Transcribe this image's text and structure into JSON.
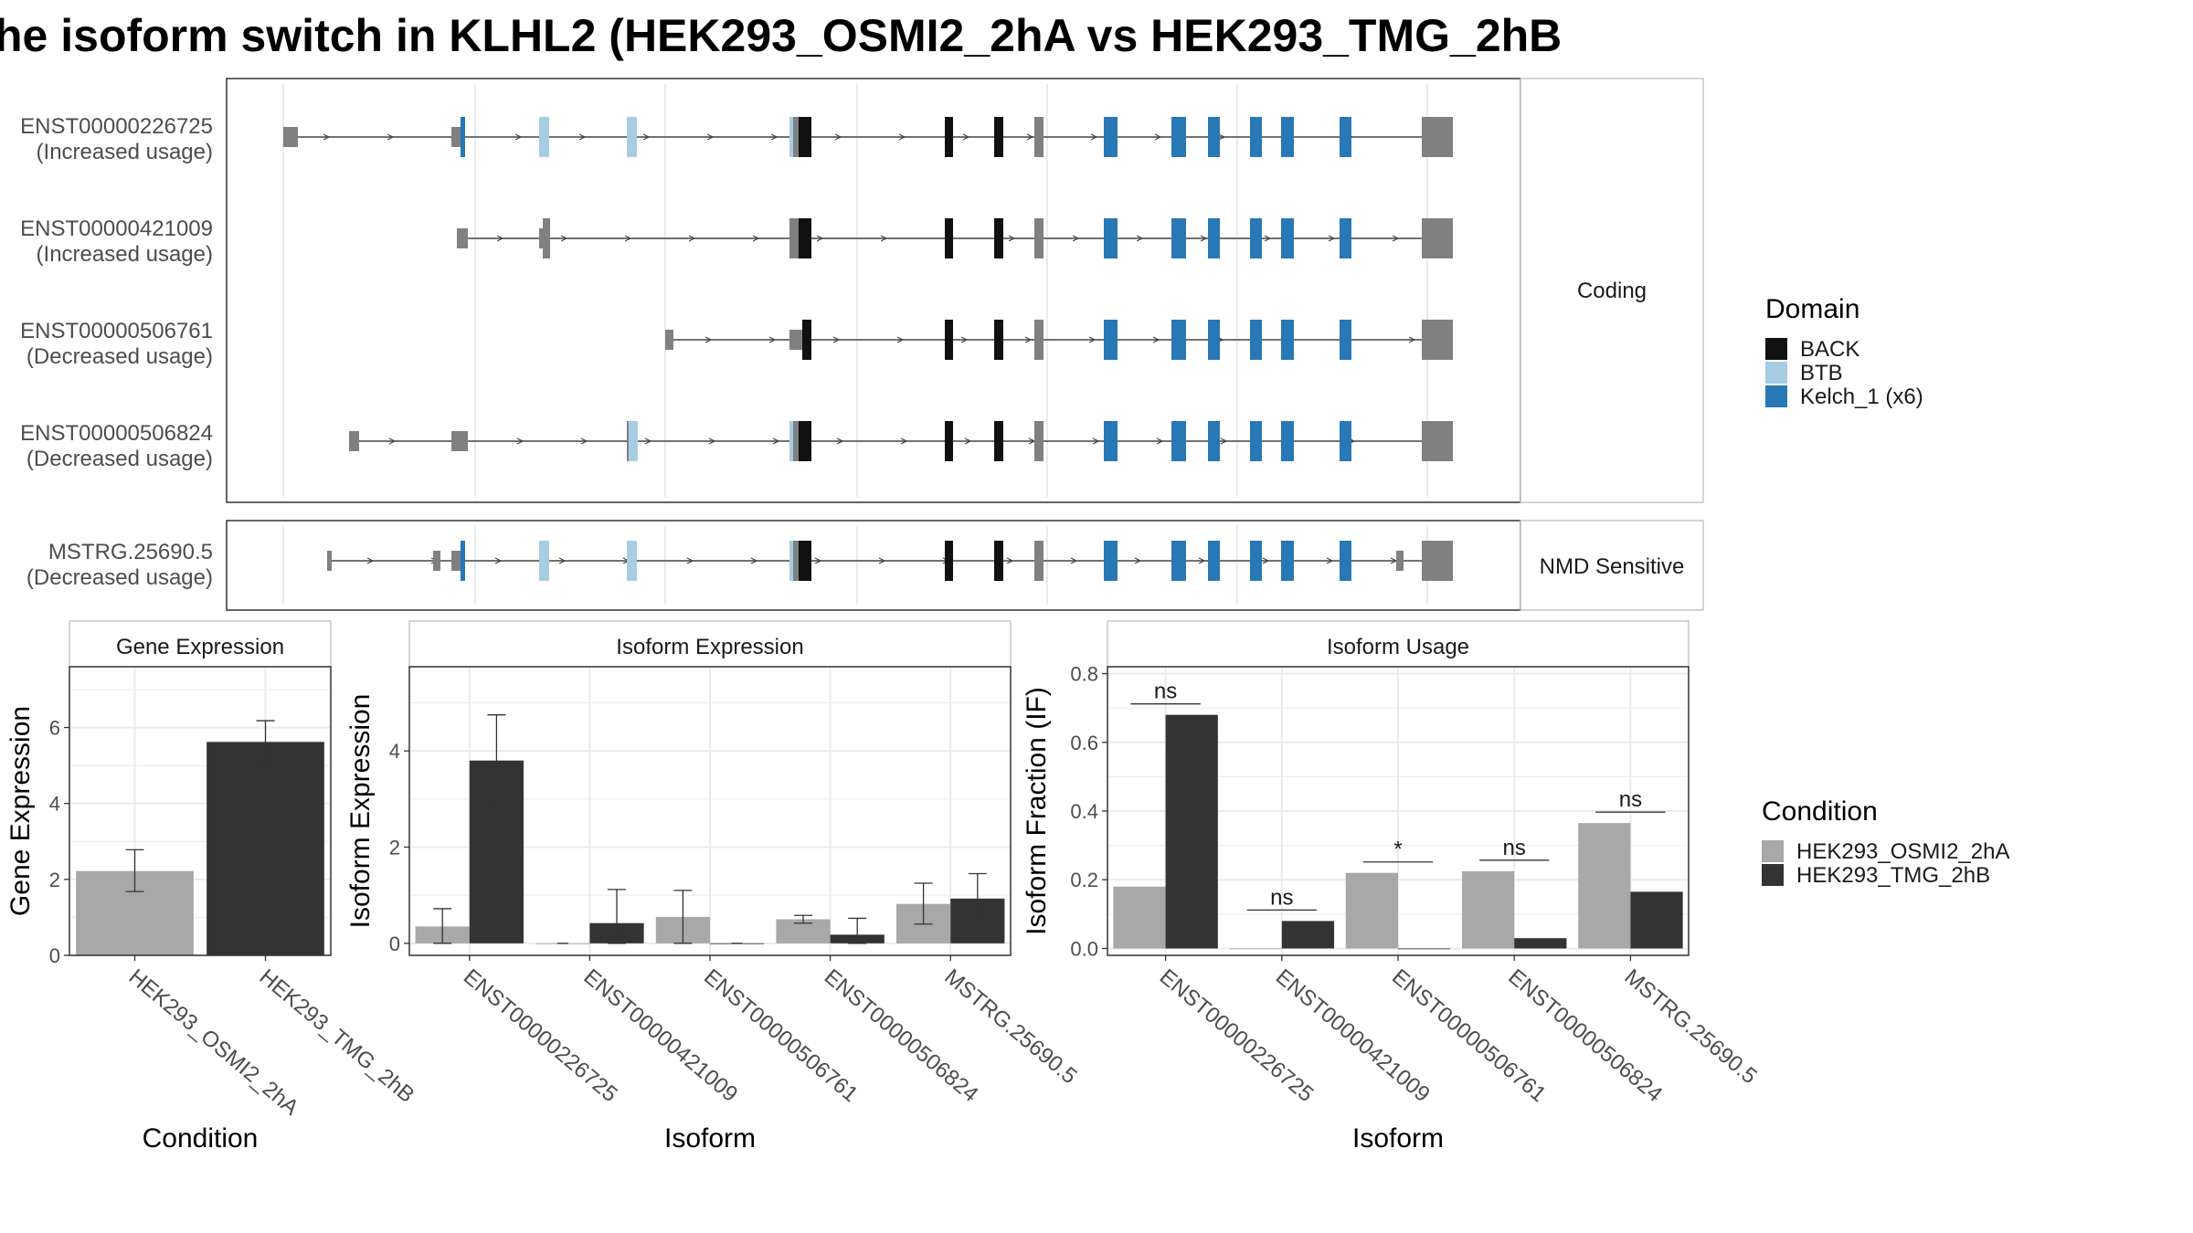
{
  "title": "he isoform switch in KLHL2 (HEK293_OSMI2_2hA vs HEK293_TMG_2hB",
  "colors": {
    "BACK": "#111111",
    "BTB": "#a6cde3",
    "Kelch_1": "#2878b5",
    "utr": "#808080",
    "line": "#444444",
    "grid": "#ebebeb",
    "cond1": "#a8a8a8",
    "cond2": "#333333"
  },
  "structure": {
    "facets": [
      "Coding",
      "NMD Sensitive"
    ],
    "transcripts": [
      {
        "id": "ENST00000226725",
        "usage": "(Increased usage)",
        "facet": "Coding"
      },
      {
        "id": "ENST00000421009",
        "usage": "(Increased usage)",
        "facet": "Coding"
      },
      {
        "id": "ENST00000506761",
        "usage": "(Decreased usage)",
        "facet": "Coding"
      },
      {
        "id": "ENST00000506824",
        "usage": "(Decreased usage)",
        "facet": "Coding"
      },
      {
        "id": "MSTRG.25690.5",
        "usage": "(Decreased usage)",
        "facet": "NMD Sensitive"
      }
    ],
    "legend_title": "Domain",
    "legend_items": [
      {
        "label": "BACK",
        "color": "#111111"
      },
      {
        "label": "BTB",
        "color": "#a6cde3"
      },
      {
        "label": "Kelch_1 (x6)",
        "color": "#2878b5"
      }
    ]
  },
  "chart_data": [
    {
      "type": "bar",
      "panel": "Gene Expression",
      "xlabel": "Condition",
      "ylabel": "Gene Expression",
      "categories": [
        "HEK293_OSMI2_2hA",
        "HEK293_TMG_2hB"
      ],
      "values": [
        2.22,
        5.62
      ],
      "error_low": [
        1.68,
        5.08
      ],
      "error_high": [
        2.78,
        6.18
      ],
      "ylim": [
        0,
        7.6
      ],
      "yticks": [
        0,
        2,
        4,
        6
      ]
    },
    {
      "type": "bar",
      "panel": "Isoform Expression",
      "xlabel": "Isoform",
      "ylabel": "Isoform Expression",
      "categories": [
        "ENST00000226725",
        "ENST00000421009",
        "ENST00000506761",
        "ENST00000506824",
        "MSTRG.25690.5"
      ],
      "series": [
        {
          "name": "HEK293_OSMI2_2hA",
          "values": [
            0.35,
            0.0,
            0.55,
            0.5,
            0.82
          ],
          "error_low": [
            0.0,
            0.0,
            0.0,
            0.42,
            0.4
          ],
          "error_high": [
            0.72,
            0.0,
            1.1,
            0.58,
            1.25
          ]
        },
        {
          "name": "HEK293_TMG_2hB",
          "values": [
            3.8,
            0.42,
            0.0,
            0.18,
            0.93
          ],
          "error_low": [
            2.85,
            0.0,
            0.0,
            0.0,
            0.45
          ],
          "error_high": [
            4.75,
            1.12,
            0.0,
            0.52,
            1.45
          ]
        }
      ],
      "ylim": [
        -0.25,
        5.75
      ],
      "yticks": [
        0,
        2,
        4
      ]
    },
    {
      "type": "bar",
      "panel": "Isoform Usage",
      "xlabel": "Isoform",
      "ylabel": "Isoform Fraction (IF)",
      "categories": [
        "ENST00000226725",
        "ENST00000421009",
        "ENST00000506761",
        "ENST00000506824",
        "MSTRG.25690.5"
      ],
      "series": [
        {
          "name": "HEK293_OSMI2_2hA",
          "values": [
            0.18,
            0.0,
            0.22,
            0.225,
            0.365
          ]
        },
        {
          "name": "HEK293_TMG_2hB",
          "values": [
            0.68,
            0.08,
            0.0,
            0.03,
            0.165
          ]
        }
      ],
      "significance": [
        "ns",
        "ns",
        "*",
        "ns",
        "ns"
      ],
      "ylim": [
        -0.02,
        0.82
      ],
      "yticks": [
        0.0,
        0.2,
        0.4,
        0.6,
        0.8
      ],
      "ytick_labels": [
        "0.0",
        "0.2",
        "0.4",
        "0.6",
        "0.8"
      ]
    }
  ],
  "condition_legend": {
    "title": "Condition",
    "items": [
      {
        "label": "HEK293_OSMI2_2hA",
        "color": "#a8a8a8"
      },
      {
        "label": "HEK293_TMG_2hB",
        "color": "#333333"
      }
    ]
  }
}
